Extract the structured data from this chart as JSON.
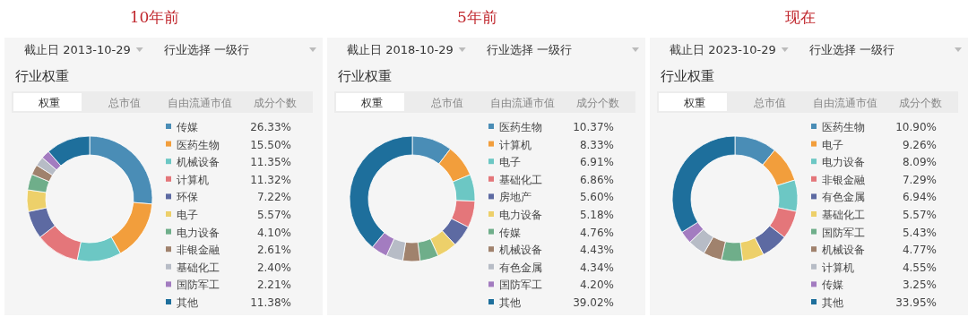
{
  "chart_data": [
    {
      "type": "donut",
      "title": "10年前",
      "subtitle": "行业权重",
      "legend": "right",
      "annotations": [
        "截止日 2013-10-29",
        "行业选择 一级行",
        "权重",
        "总市值",
        "自由流通市值",
        "成分个数"
      ],
      "categories": [
        "传媒",
        "医药生物",
        "机械设备",
        "计算机",
        "环保",
        "电子",
        "电力设备",
        "非银金融",
        "基础化工",
        "国防军工",
        "其他"
      ],
      "values": [
        26.33,
        15.5,
        11.35,
        11.32,
        7.22,
        5.57,
        4.1,
        2.61,
        2.4,
        2.21,
        11.38
      ],
      "value_labels": [
        "26.33%",
        "15.50%",
        "11.35%",
        "11.32%",
        "7.22%",
        "5.57%",
        "4.10%",
        "2.61%",
        "2.40%",
        "2.21%",
        "11.38%"
      ],
      "colors": [
        "#4a8db6",
        "#f29e3c",
        "#6cc7c4",
        "#e4767a",
        "#5d6aa2",
        "#edd06a",
        "#6fae8a",
        "#a0826d",
        "#b7bcc6",
        "#a37cc0",
        "#1e6f9c"
      ]
    },
    {
      "type": "donut",
      "title": "5年前",
      "subtitle": "行业权重",
      "legend": "right",
      "annotations": [
        "截止日 2018-10-29",
        "行业选择 一级行",
        "权重",
        "总市值",
        "自由流通市值",
        "成分个数"
      ],
      "categories": [
        "医药生物",
        "计算机",
        "电子",
        "基础化工",
        "房地产",
        "电力设备",
        "传媒",
        "机械设备",
        "有色金属",
        "国防军工",
        "其他"
      ],
      "values": [
        10.37,
        8.33,
        6.91,
        6.86,
        5.6,
        5.18,
        4.76,
        4.43,
        4.34,
        4.2,
        39.02
      ],
      "value_labels": [
        "10.37%",
        "8.33%",
        "6.91%",
        "6.86%",
        "5.60%",
        "5.18%",
        "4.76%",
        "4.43%",
        "4.34%",
        "4.20%",
        "39.02%"
      ],
      "colors": [
        "#4a8db6",
        "#f29e3c",
        "#6cc7c4",
        "#e4767a",
        "#5d6aa2",
        "#edd06a",
        "#6fae8a",
        "#a0826d",
        "#b7bcc6",
        "#a37cc0",
        "#1e6f9c"
      ]
    },
    {
      "type": "donut",
      "title": "现在",
      "subtitle": "行业权重",
      "legend": "right",
      "annotations": [
        "截止日 2023-10-29",
        "行业选择 一级行",
        "权重",
        "总市值",
        "自由流通市值",
        "成分个数"
      ],
      "categories": [
        "医药生物",
        "电子",
        "电力设备",
        "非银金融",
        "有色金属",
        "基础化工",
        "国防军工",
        "机械设备",
        "计算机",
        "传媒",
        "其他"
      ],
      "values": [
        10.9,
        9.26,
        8.09,
        7.29,
        6.94,
        5.57,
        5.43,
        4.77,
        4.55,
        3.25,
        33.95
      ],
      "value_labels": [
        "10.90%",
        "9.26%",
        "8.09%",
        "7.29%",
        "6.94%",
        "5.57%",
        "5.43%",
        "4.77%",
        "4.55%",
        "3.25%",
        "33.95%"
      ],
      "colors": [
        "#4a8db6",
        "#f29e3c",
        "#6cc7c4",
        "#e4767a",
        "#5d6aa2",
        "#edd06a",
        "#6fae8a",
        "#a0826d",
        "#b7bcc6",
        "#a37cc0",
        "#1e6f9c"
      ]
    }
  ]
}
